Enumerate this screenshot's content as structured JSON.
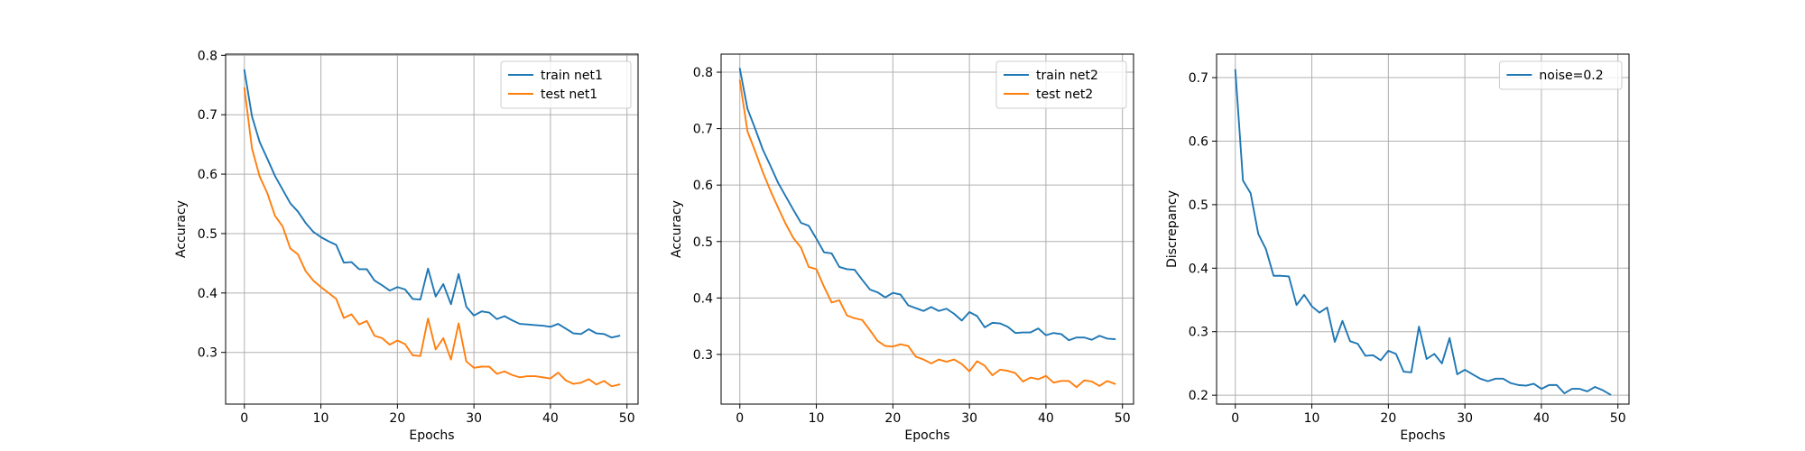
{
  "chart_data": [
    {
      "type": "line",
      "xlabel": "Epochs",
      "ylabel": "Accuracy",
      "xlim": [
        -2.45,
        51.45
      ],
      "ylim": [
        0.213,
        0.802
      ],
      "xticks": [
        0,
        10,
        20,
        30,
        40,
        50
      ],
      "yticks": [
        0.3,
        0.4,
        0.5,
        0.6,
        0.7,
        0.8
      ],
      "grid": true,
      "legend_position": "top-right",
      "series": [
        {
          "name": "train net1",
          "color": "#1f77b4",
          "x": [
            0,
            1,
            2,
            3,
            4,
            5,
            6,
            7,
            8,
            9,
            10,
            11,
            12,
            13,
            14,
            15,
            16,
            17,
            18,
            19,
            20,
            21,
            22,
            23,
            24,
            25,
            26,
            27,
            28,
            29,
            30,
            31,
            32,
            33,
            34,
            35,
            36,
            37,
            38,
            39,
            40,
            41,
            42,
            43,
            44,
            45,
            46,
            47,
            48,
            49
          ],
          "values": [
            0.775,
            0.697,
            0.654,
            0.626,
            0.597,
            0.574,
            0.551,
            0.537,
            0.518,
            0.503,
            0.494,
            0.487,
            0.481,
            0.451,
            0.452,
            0.44,
            0.44,
            0.421,
            0.413,
            0.404,
            0.41,
            0.406,
            0.39,
            0.389,
            0.441,
            0.394,
            0.415,
            0.381,
            0.432,
            0.377,
            0.362,
            0.369,
            0.367,
            0.356,
            0.361,
            0.354,
            0.348,
            0.347,
            0.346,
            0.345,
            0.343,
            0.348,
            0.34,
            0.332,
            0.331,
            0.339,
            0.332,
            0.331,
            0.325,
            0.328
          ]
        },
        {
          "name": "test net1",
          "color": "#ff7f0e",
          "x": [
            0,
            1,
            2,
            3,
            4,
            5,
            6,
            7,
            8,
            9,
            10,
            11,
            12,
            13,
            14,
            15,
            16,
            17,
            18,
            19,
            20,
            21,
            22,
            23,
            24,
            25,
            26,
            27,
            28,
            29,
            30,
            31,
            32,
            33,
            34,
            35,
            36,
            37,
            38,
            39,
            40,
            41,
            42,
            43,
            44,
            45,
            46,
            47,
            48,
            49
          ],
          "values": [
            0.745,
            0.643,
            0.596,
            0.568,
            0.53,
            0.512,
            0.475,
            0.465,
            0.437,
            0.421,
            0.41,
            0.4,
            0.39,
            0.358,
            0.364,
            0.347,
            0.353,
            0.328,
            0.324,
            0.313,
            0.32,
            0.314,
            0.295,
            0.294,
            0.357,
            0.305,
            0.324,
            0.288,
            0.349,
            0.285,
            0.274,
            0.276,
            0.276,
            0.264,
            0.268,
            0.262,
            0.258,
            0.26,
            0.26,
            0.258,
            0.256,
            0.266,
            0.253,
            0.247,
            0.249,
            0.255,
            0.246,
            0.252,
            0.243,
            0.246
          ]
        }
      ]
    },
    {
      "type": "line",
      "xlabel": "Epochs",
      "ylabel": "Accuracy",
      "xlim": [
        -2.45,
        51.45
      ],
      "ylim": [
        0.212,
        0.832
      ],
      "xticks": [
        0,
        10,
        20,
        30,
        40,
        50
      ],
      "yticks": [
        0.3,
        0.4,
        0.5,
        0.6,
        0.7,
        0.8
      ],
      "grid": true,
      "legend_position": "top-right",
      "series": [
        {
          "name": "train net2",
          "color": "#1f77b4",
          "x": [
            0,
            1,
            2,
            3,
            4,
            5,
            6,
            7,
            8,
            9,
            10,
            11,
            12,
            13,
            14,
            15,
            16,
            17,
            18,
            19,
            20,
            21,
            22,
            23,
            24,
            25,
            26,
            27,
            28,
            29,
            30,
            31,
            32,
            33,
            34,
            35,
            36,
            37,
            38,
            39,
            40,
            41,
            42,
            43,
            44,
            45,
            46,
            47,
            48,
            49
          ],
          "values": [
            0.806,
            0.735,
            0.7,
            0.663,
            0.634,
            0.604,
            0.58,
            0.556,
            0.533,
            0.528,
            0.505,
            0.481,
            0.479,
            0.455,
            0.451,
            0.45,
            0.432,
            0.415,
            0.41,
            0.401,
            0.409,
            0.406,
            0.387,
            0.382,
            0.377,
            0.384,
            0.377,
            0.381,
            0.372,
            0.36,
            0.375,
            0.368,
            0.348,
            0.356,
            0.355,
            0.349,
            0.338,
            0.339,
            0.339,
            0.346,
            0.334,
            0.338,
            0.336,
            0.325,
            0.33,
            0.33,
            0.326,
            0.333,
            0.328,
            0.327
          ]
        },
        {
          "name": "test net2",
          "color": "#ff7f0e",
          "x": [
            0,
            1,
            2,
            3,
            4,
            5,
            6,
            7,
            8,
            9,
            10,
            11,
            12,
            13,
            14,
            15,
            16,
            17,
            18,
            19,
            20,
            21,
            22,
            23,
            24,
            25,
            26,
            27,
            28,
            29,
            30,
            31,
            32,
            33,
            34,
            35,
            36,
            37,
            38,
            39,
            40,
            41,
            42,
            43,
            44,
            45,
            46,
            47,
            48,
            49
          ],
          "values": [
            0.785,
            0.695,
            0.66,
            0.623,
            0.59,
            0.56,
            0.531,
            0.506,
            0.489,
            0.455,
            0.451,
            0.42,
            0.392,
            0.396,
            0.369,
            0.364,
            0.361,
            0.343,
            0.324,
            0.315,
            0.314,
            0.318,
            0.315,
            0.296,
            0.291,
            0.284,
            0.291,
            0.287,
            0.291,
            0.283,
            0.27,
            0.288,
            0.28,
            0.263,
            0.273,
            0.271,
            0.267,
            0.252,
            0.259,
            0.256,
            0.262,
            0.25,
            0.253,
            0.253,
            0.242,
            0.254,
            0.252,
            0.244,
            0.253,
            0.248
          ]
        }
      ]
    },
    {
      "type": "line",
      "xlabel": "Epochs",
      "ylabel": "Discrepancy",
      "xlim": [
        -2.45,
        51.45
      ],
      "ylim": [
        0.186,
        0.737
      ],
      "xticks": [
        0,
        10,
        20,
        30,
        40,
        50
      ],
      "yticks": [
        0.2,
        0.3,
        0.4,
        0.5,
        0.6,
        0.7
      ],
      "grid": true,
      "legend_position": "top-right",
      "series": [
        {
          "name": "noise=0.2",
          "color": "#1f77b4",
          "x": [
            0,
            1,
            2,
            3,
            4,
            5,
            6,
            7,
            8,
            9,
            10,
            11,
            12,
            13,
            14,
            15,
            16,
            17,
            18,
            19,
            20,
            21,
            22,
            23,
            24,
            25,
            26,
            27,
            28,
            29,
            30,
            31,
            32,
            33,
            34,
            35,
            36,
            37,
            38,
            39,
            40,
            41,
            42,
            43,
            44,
            45,
            46,
            47,
            48,
            49
          ],
          "values": [
            0.712,
            0.538,
            0.518,
            0.454,
            0.43,
            0.388,
            0.388,
            0.387,
            0.342,
            0.358,
            0.34,
            0.33,
            0.338,
            0.284,
            0.317,
            0.285,
            0.281,
            0.262,
            0.263,
            0.255,
            0.27,
            0.265,
            0.237,
            0.236,
            0.308,
            0.257,
            0.265,
            0.25,
            0.29,
            0.233,
            0.24,
            0.233,
            0.226,
            0.222,
            0.226,
            0.226,
            0.219,
            0.216,
            0.215,
            0.218,
            0.21,
            0.216,
            0.216,
            0.203,
            0.21,
            0.21,
            0.206,
            0.213,
            0.208,
            0.201
          ]
        }
      ]
    }
  ]
}
